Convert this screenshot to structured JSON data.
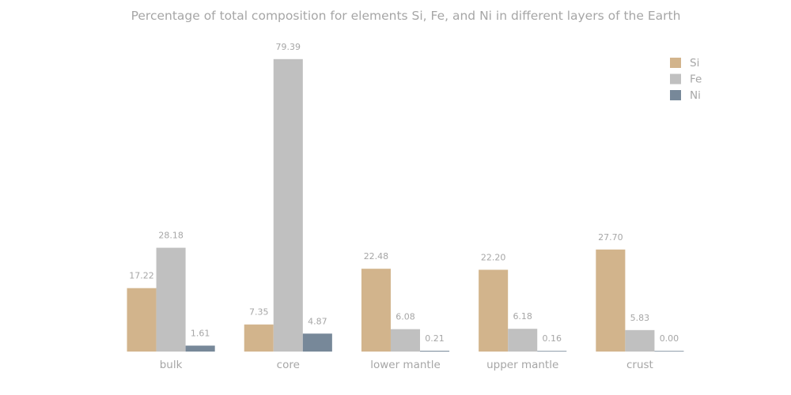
{
  "chart_data": {
    "type": "bar",
    "title": "Percentage of total composition for elements Si, Fe, and Ni in different layers of the Earth",
    "categories": [
      "bulk",
      "core",
      "lower mantle",
      "upper mantle",
      "crust"
    ],
    "series": [
      {
        "name": "Si",
        "color": "#d2b48c",
        "values": [
          17.22,
          7.35,
          22.48,
          22.2,
          27.7
        ],
        "labels": [
          "17.22",
          "7.35",
          "22.48",
          "22.20",
          "27.70"
        ]
      },
      {
        "name": "Fe",
        "color": "#c0c0c0",
        "values": [
          28.18,
          79.39,
          6.08,
          6.18,
          5.83
        ],
        "labels": [
          "28.18",
          "79.39",
          "6.08",
          "6.18",
          "5.83"
        ]
      },
      {
        "name": "Ni",
        "color": "#778899",
        "values": [
          1.61,
          4.87,
          0.21,
          0.16,
          0.0
        ],
        "labels": [
          "1.61",
          "4.87",
          "0.21",
          "0.16",
          "0.00"
        ]
      }
    ],
    "xlabel": "",
    "ylabel": "",
    "ylim": [
      0,
      86
    ],
    "grid": false,
    "legend": "top-right"
  }
}
